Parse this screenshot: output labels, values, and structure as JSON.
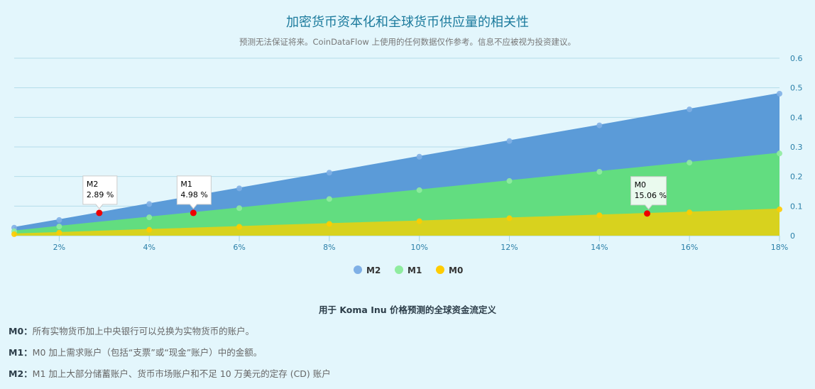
{
  "header": {
    "title": "加密货币资本化和全球货币供应量的相关性",
    "subtitle": "预测无法保证将来。CoinDataFlow 上使用的任何数据仅作参考。信息不应被视为投资建议。"
  },
  "chart_data": {
    "type": "area",
    "x": [
      1,
      2,
      4,
      6,
      8,
      10,
      12,
      14,
      16,
      18
    ],
    "x_tick_labels": [
      "2%",
      "4%",
      "6%",
      "8%",
      "10%",
      "12%",
      "14%",
      "16%",
      "18%"
    ],
    "y_tick_labels": [
      "0",
      "0.1",
      "0.2",
      "0.3",
      "0.4",
      "0.5",
      "0.6"
    ],
    "ylim": [
      0,
      0.6
    ],
    "grid": true,
    "legend_placement": "bottom",
    "series": [
      {
        "name": "M2",
        "color": "#5b9bd8",
        "marker": "#7fb0e6",
        "values": [
          0.027,
          0.053,
          0.107,
          0.16,
          0.213,
          0.267,
          0.32,
          0.373,
          0.427,
          0.48
        ]
      },
      {
        "name": "M1",
        "color": "#62dd80",
        "marker": "#8fec9f",
        "values": [
          0.015,
          0.031,
          0.062,
          0.093,
          0.124,
          0.154,
          0.185,
          0.216,
          0.247,
          0.278
        ]
      },
      {
        "name": "M0",
        "color": "#d8d21e",
        "marker": "#ffcc00",
        "values": [
          0.005,
          0.01,
          0.02,
          0.03,
          0.04,
          0.049,
          0.059,
          0.069,
          0.079,
          0.089
        ]
      }
    ],
    "annotations": [
      {
        "series": "M2",
        "label": "M2",
        "text": "2.89 %",
        "x": 2.89,
        "y": 0.077
      },
      {
        "series": "M1",
        "label": "M1",
        "text": "4.98 %",
        "x": 4.98,
        "y": 0.077
      },
      {
        "series": "M0",
        "label": "M0",
        "text": "15.06 %",
        "x": 15.06,
        "y": 0.075
      }
    ],
    "highlight_color": "#ee0000"
  },
  "definitions": {
    "title": "用于 Koma Inu 价格预测的全球资金流定义",
    "items": [
      {
        "term": "M0",
        "sep": "：",
        "text": "所有实物货币加上中央银行可以兑换为实物货币的账户。"
      },
      {
        "term": "M1",
        "sep": "：",
        "text": "M0 加上需求账户（包括“支票”或“现金”账户）中的金额。"
      },
      {
        "term": "M2",
        "sep": "：",
        "text": "M1 加上大部分储蓄账户、货币市场账户和不足 10 万美元的定存 (CD) 账户"
      }
    ]
  }
}
